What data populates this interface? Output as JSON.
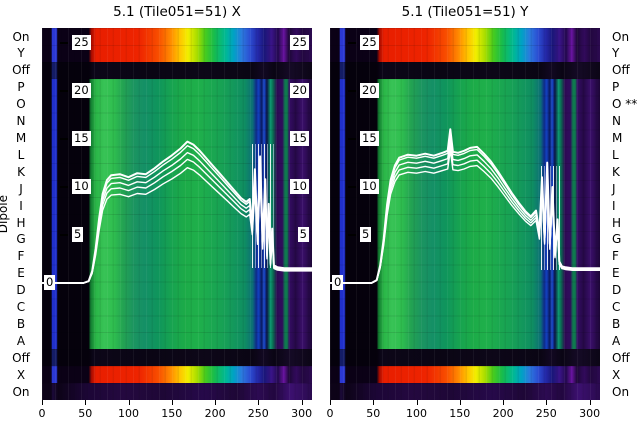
{
  "figure": {
    "ylabel": "Dipole",
    "panels": [
      {
        "title": "5.1 (Tile051=51) X"
      },
      {
        "title": "5.1 (Tile051=51) Y"
      }
    ],
    "row_labels_left": [
      "On",
      "Y",
      "Off",
      "P",
      "O",
      "N",
      "M",
      "L",
      "K",
      "J",
      "I",
      "H",
      "G",
      "F",
      "E",
      "D",
      "C",
      "B",
      "A",
      "Off",
      "X",
      "On"
    ],
    "row_labels_right": [
      "On",
      "Y",
      "Off",
      "P",
      "O **",
      "N",
      "M",
      "L",
      "K",
      "J",
      "I",
      "H",
      "G",
      "F",
      "E",
      "D",
      "C",
      "B",
      "A",
      "Off",
      "X",
      "On"
    ],
    "zero_label": "0"
  },
  "palette": {
    "background": "#ffffff",
    "text": "#000000",
    "line": "#ffffff",
    "heat_red": "#ee2400",
    "heat_green": "#1fa84e",
    "heat_blue": "#1f2ecc",
    "heat_purple": "#2c0a52"
  },
  "chart_data": [
    {
      "type": "heatmap",
      "title": "5.1 (Tile051=51) X",
      "ylabel": "Dipole",
      "x_range": [
        0,
        312
      ],
      "x_ticks": [
        0,
        50,
        100,
        150,
        200,
        250,
        300
      ],
      "y_ticks_display": [
        25,
        20,
        15,
        10,
        5
      ],
      "y_value_range": [
        0,
        25
      ],
      "right_tick_labels": true,
      "legend": "off",
      "rows": [
        {
          "label": "On",
          "band": "rainbow"
        },
        {
          "label": "Y",
          "band": "rainbow"
        },
        {
          "label": "Off",
          "band": "dark"
        },
        {
          "label": "P",
          "band": "green"
        },
        {
          "label": "O",
          "band": "green"
        },
        {
          "label": "N",
          "band": "green"
        },
        {
          "label": "M",
          "band": "green"
        },
        {
          "label": "L",
          "band": "green"
        },
        {
          "label": "K",
          "band": "green"
        },
        {
          "label": "J",
          "band": "green"
        },
        {
          "label": "I",
          "band": "green"
        },
        {
          "label": "H",
          "band": "green"
        },
        {
          "label": "G",
          "band": "green"
        },
        {
          "label": "F",
          "band": "green"
        },
        {
          "label": "E",
          "band": "green"
        },
        {
          "label": "D",
          "band": "green"
        },
        {
          "label": "C",
          "band": "green"
        },
        {
          "label": "B",
          "band": "green"
        },
        {
          "label": "A",
          "band": "green"
        },
        {
          "label": "Off",
          "band": "dark"
        },
        {
          "label": "X",
          "band": "rainbow"
        },
        {
          "label": "On",
          "band": "purple"
        }
      ],
      "line_series": {
        "name": "dipole gain bundle X",
        "x": [
          0,
          48,
          54,
          58,
          62,
          66,
          70,
          75,
          80,
          90,
          100,
          110,
          120,
          130,
          140,
          150,
          160,
          168,
          175,
          182,
          190,
          198,
          206,
          214,
          222,
          230,
          236,
          240,
          243,
          246,
          249,
          252,
          255,
          258,
          260,
          262,
          264,
          266,
          268,
          272,
          280,
          290,
          300,
          312
        ],
        "y": [
          0,
          0,
          0.2,
          1.2,
          3.5,
          6.5,
          9.0,
          10.4,
          10.9,
          11.0,
          10.7,
          11.1,
          11.0,
          11.6,
          12.3,
          12.9,
          13.6,
          14.3,
          14.0,
          13.4,
          12.6,
          11.8,
          11.0,
          10.2,
          9.4,
          8.6,
          8.2,
          8.5,
          6.0,
          11.5,
          4.8,
          12.8,
          4.2,
          10.5,
          3.0,
          8.0,
          2.2,
          5.5,
          1.8,
          1.6,
          1.5,
          1.5,
          1.5,
          1.5
        ],
        "bundle_scale": [
          1.03,
          1.0,
          0.95,
          0.9,
          0.84
        ]
      }
    },
    {
      "type": "heatmap",
      "title": "5.1 (Tile051=51) Y",
      "ylabel": "Dipole",
      "x_range": [
        0,
        312
      ],
      "x_ticks": [
        0,
        50,
        100,
        150,
        200,
        250,
        300
      ],
      "y_ticks_display": [
        25,
        20,
        15,
        10,
        5
      ],
      "y_value_range": [
        0,
        25
      ],
      "right_tick_labels": false,
      "legend": "off",
      "rows": [
        {
          "label": "On",
          "band": "rainbow"
        },
        {
          "label": "Y",
          "band": "rainbow"
        },
        {
          "label": "Off",
          "band": "dark"
        },
        {
          "label": "P",
          "band": "green"
        },
        {
          "label": "O **",
          "band": "green"
        },
        {
          "label": "N",
          "band": "green"
        },
        {
          "label": "M",
          "band": "green"
        },
        {
          "label": "L",
          "band": "green"
        },
        {
          "label": "K",
          "band": "green"
        },
        {
          "label": "J",
          "band": "green"
        },
        {
          "label": "I",
          "band": "green"
        },
        {
          "label": "H",
          "band": "green"
        },
        {
          "label": "G",
          "band": "green"
        },
        {
          "label": "F",
          "band": "green"
        },
        {
          "label": "E",
          "band": "green"
        },
        {
          "label": "D",
          "band": "green"
        },
        {
          "label": "C",
          "band": "green"
        },
        {
          "label": "B",
          "band": "green"
        },
        {
          "label": "A",
          "band": "green"
        },
        {
          "label": "Off",
          "band": "dark"
        },
        {
          "label": "X",
          "band": "rainbow"
        },
        {
          "label": "On",
          "band": "purple"
        }
      ],
      "line_series": {
        "name": "dipole gain bundle Y",
        "x": [
          0,
          48,
          54,
          58,
          62,
          66,
          70,
          75,
          80,
          90,
          100,
          110,
          120,
          130,
          136,
          139,
          142,
          148,
          155,
          162,
          170,
          178,
          186,
          194,
          202,
          210,
          218,
          226,
          232,
          238,
          242,
          245,
          248,
          251,
          254,
          257,
          260,
          263,
          265,
          268,
          272,
          280,
          290,
          300,
          312
        ],
        "y": [
          0,
          0,
          0.3,
          1.8,
          4.5,
          8.0,
          10.5,
          12.0,
          12.8,
          13.1,
          13.0,
          13.2,
          13.0,
          13.3,
          13.5,
          15.7,
          13.4,
          13.3,
          13.5,
          13.8,
          13.9,
          13.2,
          12.4,
          11.4,
          10.3,
          9.2,
          8.2,
          7.3,
          6.8,
          7.4,
          5.2,
          10.8,
          4.6,
          12.3,
          4.0,
          9.8,
          3.0,
          6.5,
          2.2,
          1.7,
          1.6,
          1.5,
          1.5,
          1.5,
          1.5
        ],
        "bundle_scale": [
          1.02,
          1.0,
          0.96,
          0.92,
          0.88
        ]
      }
    }
  ]
}
